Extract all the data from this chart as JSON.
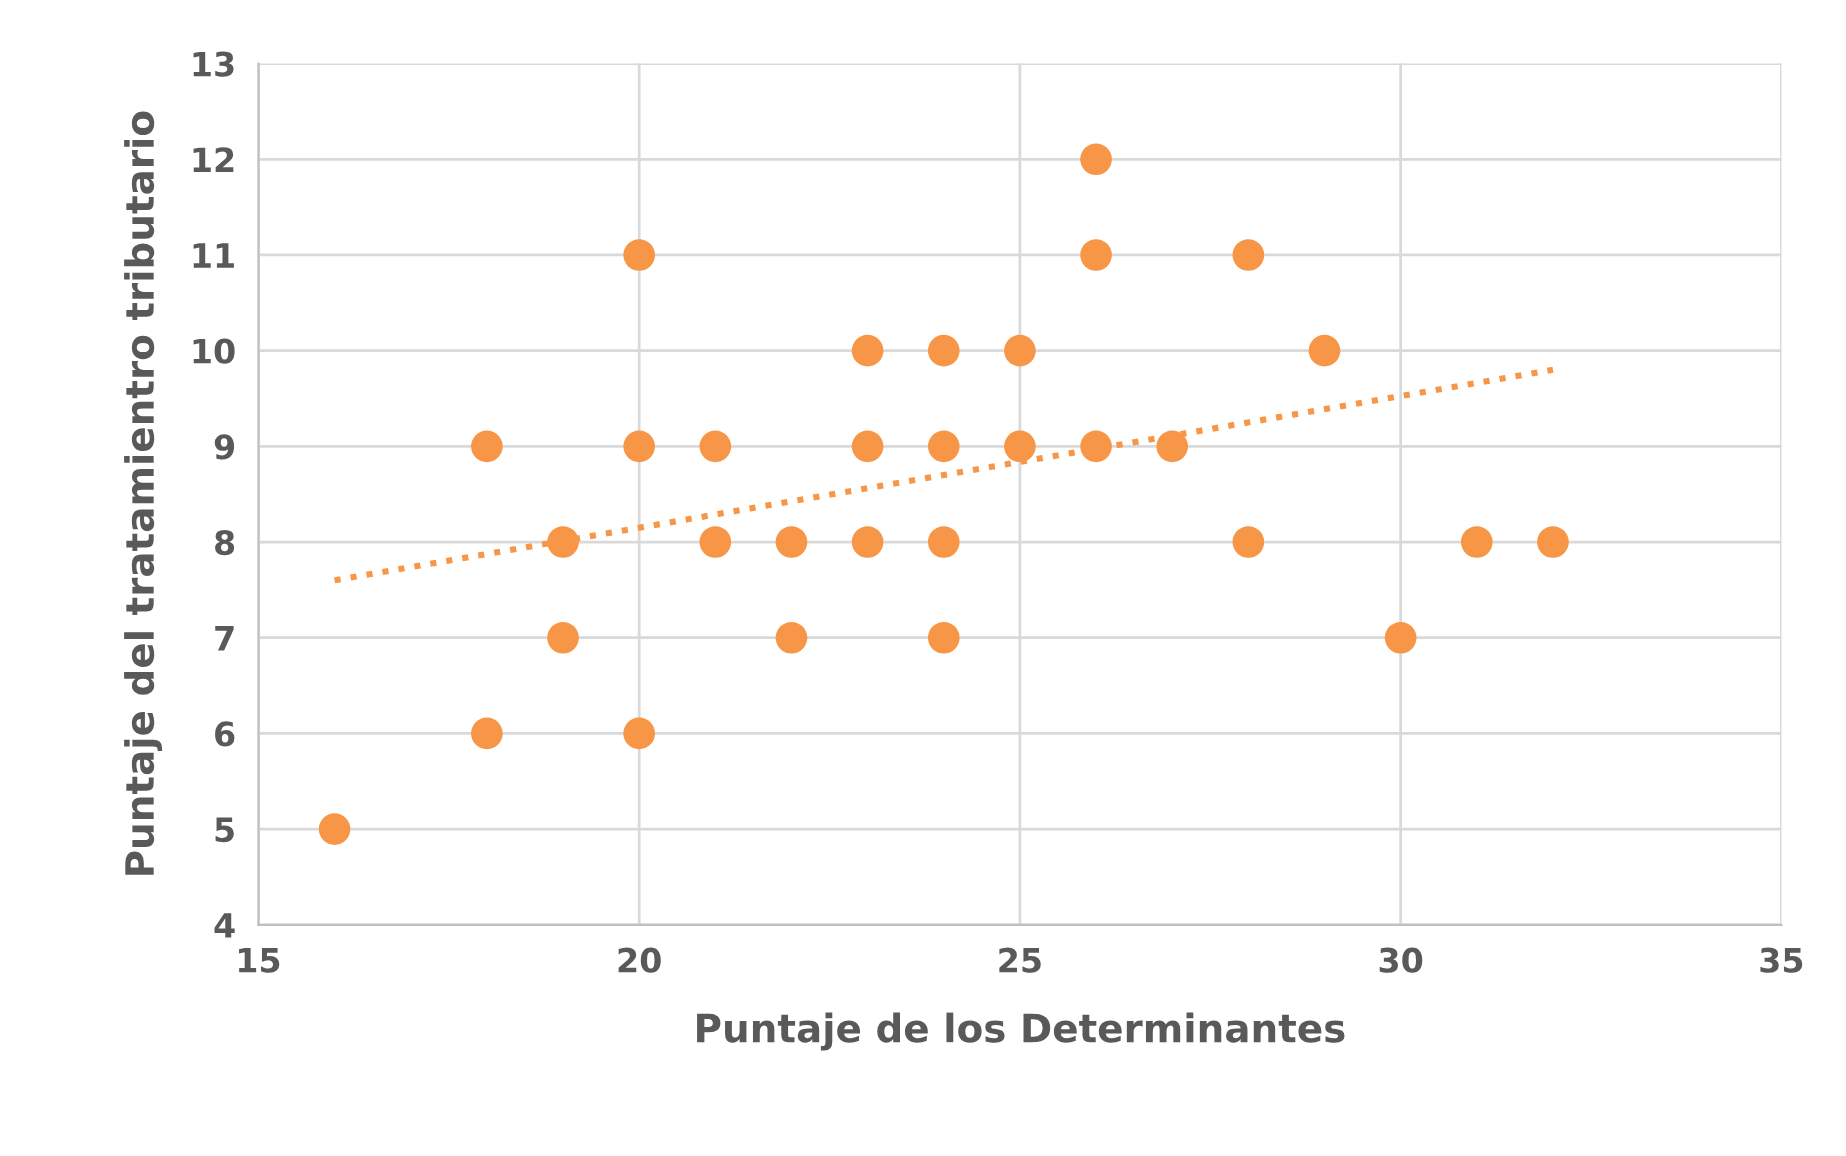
{
  "chart_data": {
    "type": "scatter",
    "xlabel": "Puntaje de los Determinantes",
    "ylabel": "Puntaje del tratamientro tributario",
    "xlim": [
      15,
      35
    ],
    "xticks": [
      15,
      20,
      25,
      30,
      35
    ],
    "ylim": [
      4,
      13
    ],
    "yticks": [
      4,
      5,
      6,
      7,
      8,
      9,
      10,
      11,
      12,
      13
    ],
    "grid": true,
    "series": [
      {
        "marker": "circle",
        "color": "#f79646",
        "x": [
          16,
          18,
          18,
          19,
          19,
          20,
          20,
          20,
          21,
          21,
          22,
          22,
          23,
          23,
          23,
          24,
          24,
          24,
          24,
          25,
          25,
          26,
          26,
          26,
          27,
          28,
          28,
          29,
          30,
          31,
          32
        ],
        "values": [
          5,
          9,
          6,
          8,
          7,
          11,
          9,
          6,
          9,
          8,
          8,
          7,
          10,
          9,
          8,
          10,
          9,
          8,
          7,
          10,
          9,
          12,
          11,
          9,
          9,
          11,
          8,
          10,
          7,
          8,
          8
        ]
      },
      {
        "type": "line",
        "color": "#f79646",
        "line_style": "dotted",
        "x": [
          16,
          32
        ],
        "values": [
          7.6,
          9.8
        ]
      }
    ]
  }
}
